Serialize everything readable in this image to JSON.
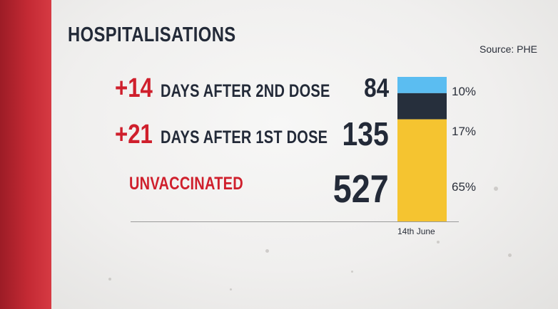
{
  "header": {
    "title": "HOSPITALISATIONS",
    "source": "Source: PHE"
  },
  "chart_data": {
    "type": "bar",
    "stacked": true,
    "title": "HOSPITALISATIONS",
    "categories": [
      "14th June"
    ],
    "series": [
      {
        "prefix": "+14",
        "label": "DAYS AFTER 2ND DOSE",
        "value": 84,
        "percent": "10%",
        "color": "#5bbdf1"
      },
      {
        "prefix": "+21",
        "label": "DAYS AFTER 1ST DOSE",
        "value": 135,
        "percent": "17%",
        "color": "#262f3c"
      },
      {
        "prefix": "",
        "label": "UNVACCINATED",
        "value": 527,
        "percent": "65%",
        "color": "#f5c430"
      }
    ],
    "note_colors": {
      "label_text": "#232a38",
      "accent_red": "#cf1f2c"
    }
  }
}
